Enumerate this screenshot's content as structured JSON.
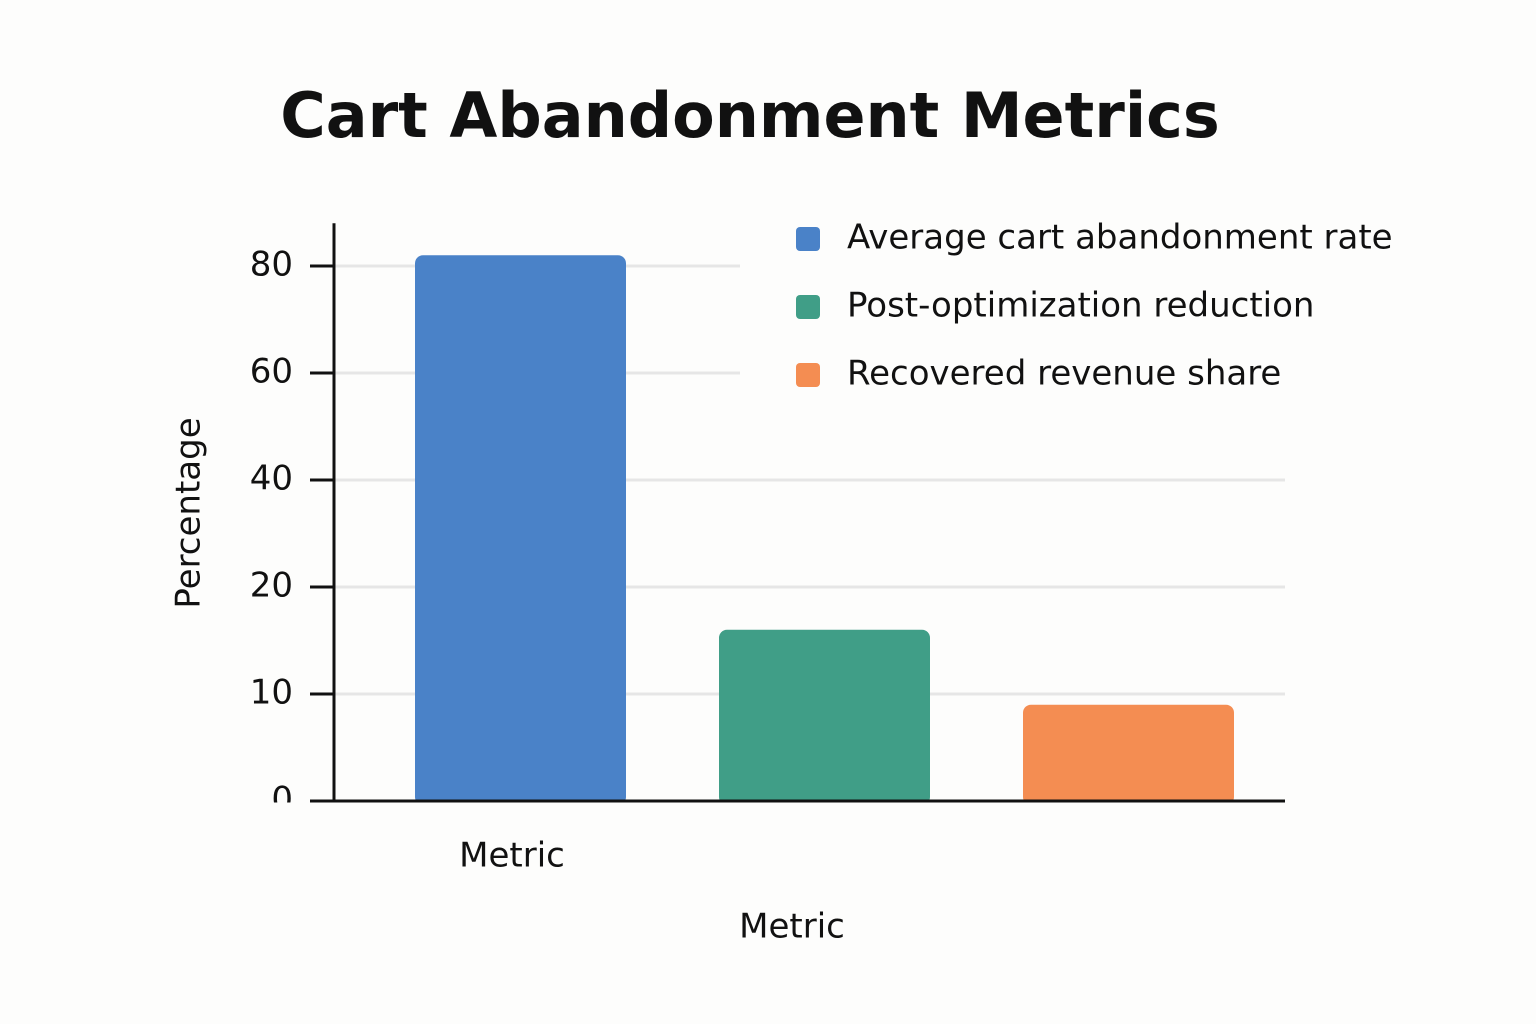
{
  "chart_data": {
    "type": "bar",
    "title": "Cart Abandonment Metrics",
    "x_label": "Metric",
    "y_label": "Percentage",
    "categories": [
      "Metric"
    ],
    "series": [
      {
        "name": "Average cart abandonment rate",
        "color": "#4a82c8",
        "values": [
          82
        ]
      },
      {
        "name": "Post-optimization reduction",
        "color": "#409e87",
        "values": [
          16
        ]
      },
      {
        "name": "Recovered revenue share",
        "color": "#f48d52",
        "values": [
          9
        ]
      }
    ],
    "ylim": [
      0,
      88
    ],
    "yticks": [
      0,
      10,
      20,
      40,
      60,
      80
    ],
    "grid": true,
    "legend": "top-right"
  }
}
